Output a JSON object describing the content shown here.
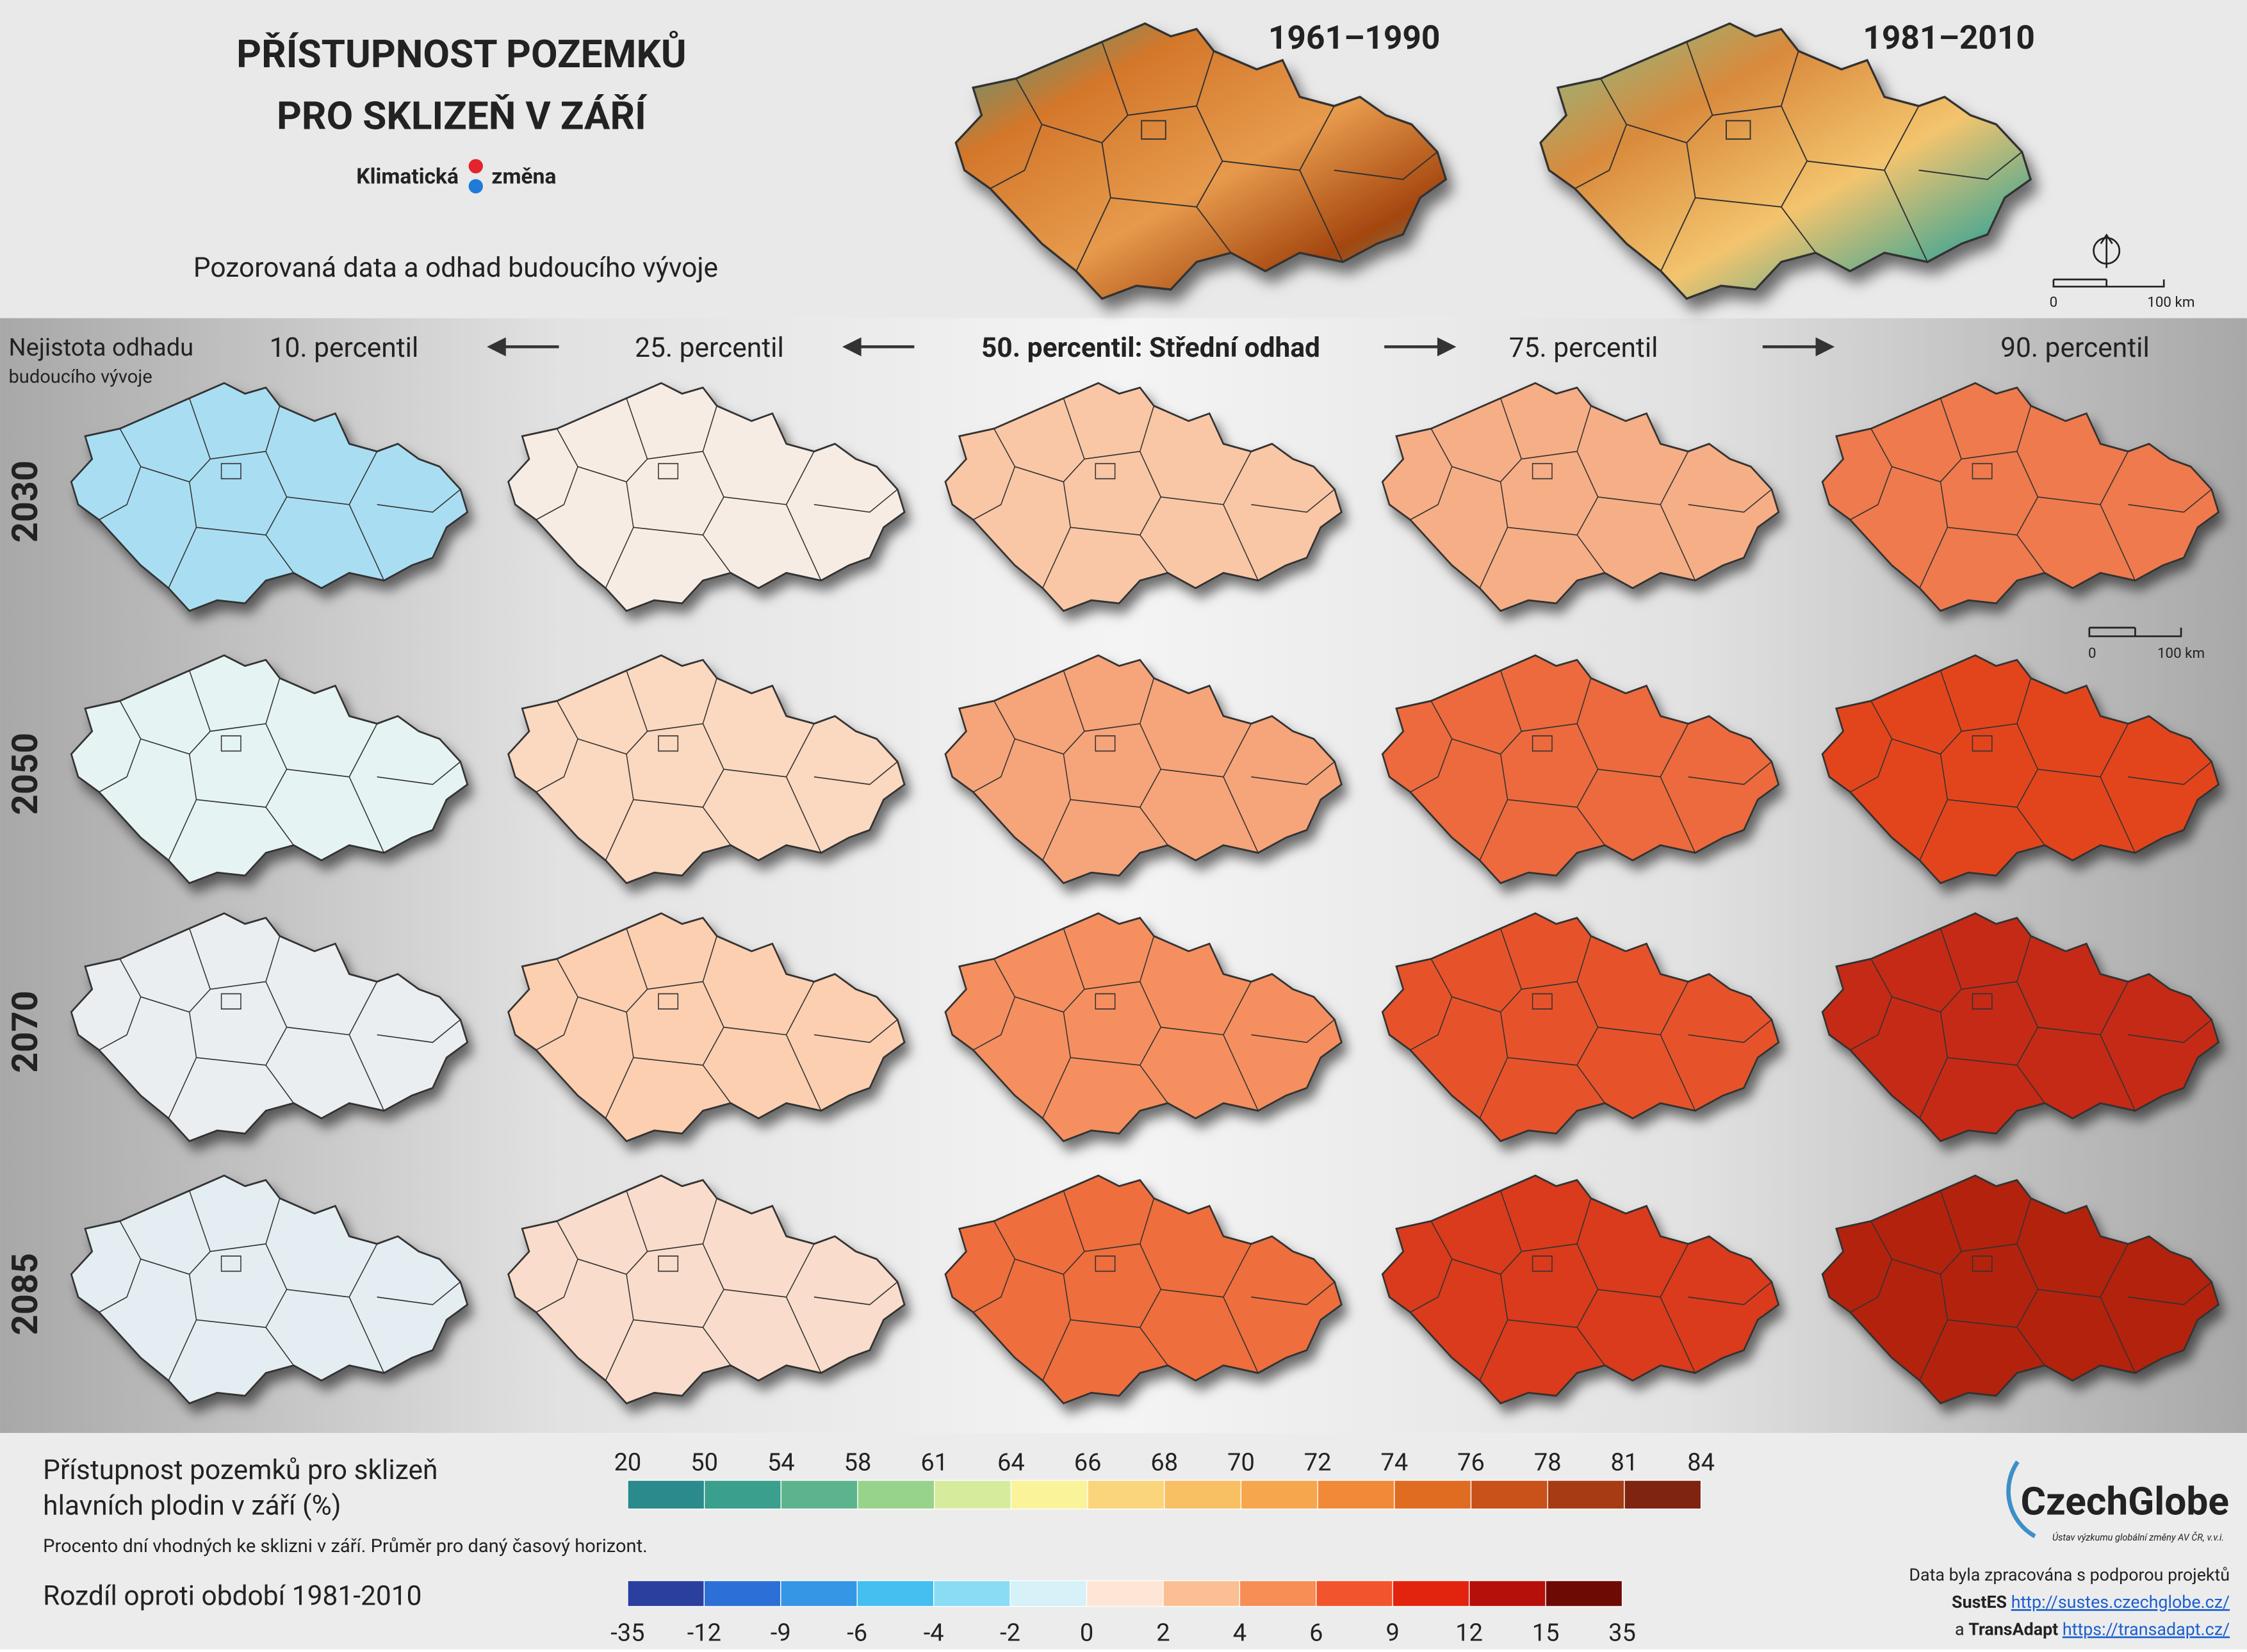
{
  "header": {
    "title_line1": "PŘÍSTUPNOST POZEMKŮ",
    "title_line2": "PRO SKLIZEŇ V ZÁŘÍ",
    "logo_left": "Klimatická",
    "logo_right": "změna",
    "subtitle": "Pozorovaná data a odhad budoucího vývoje"
  },
  "observed": [
    {
      "label": "1961–1990"
    },
    {
      "label": "1981–2010"
    }
  ],
  "scale_bar": {
    "start": "0",
    "end": "100 km"
  },
  "uncertainty": {
    "line1": "Nejistota odhadu",
    "line2": "budoucího vývoje"
  },
  "columns": [
    "10. percentil",
    "25. percentil",
    "50. percentil: Střední odhad",
    "75. percentil",
    "90. percentil"
  ],
  "rows": [
    "2030",
    "2050",
    "2070",
    "2085"
  ],
  "map_fills": [
    [
      "#a9def2",
      "#f7ece4",
      "#f9c7a6",
      "#f6ae86",
      "#ee7a4d"
    ],
    [
      "#e6f3f3",
      "#fbd8c0",
      "#f6a47a",
      "#ec6a3e",
      "#e2451f"
    ],
    [
      "#eaeef0",
      "#fbcfb0",
      "#f58f5e",
      "#e6522a",
      "#c52a12"
    ],
    [
      "#e4eef2",
      "#f9dccb",
      "#ee6e3d",
      "#d93a1b",
      "#b3200c"
    ]
  ],
  "legend_absolute": {
    "title_line1": "Přístupnost pozemků pro sklizeň",
    "title_line2": "hlavních plodin v září (%)",
    "note": "Procento dní vhodných ke sklizni v září. Průměr pro daný časový horizont.",
    "ticks": [
      "20",
      "50",
      "54",
      "58",
      "61",
      "64",
      "66",
      "68",
      "70",
      "72",
      "74",
      "76",
      "78",
      "81",
      "84"
    ],
    "colors": [
      "#2a8a8c",
      "#3a9f8d",
      "#5cb48e",
      "#98d38c",
      "#d6ec9c",
      "#faf39a",
      "#fbd57c",
      "#f9bf63",
      "#f6a64c",
      "#f08a38",
      "#e06c22",
      "#c9511a",
      "#a63b14",
      "#7e2410"
    ]
  },
  "legend_difference": {
    "title": "Rozdíl oproti období 1981-2010",
    "ticks": [
      "-35",
      "-12",
      "-9",
      "-6",
      "-4",
      "-2",
      "0",
      "2",
      "4",
      "6",
      "9",
      "12",
      "15",
      "35"
    ],
    "colors": [
      "#2b3f9e",
      "#2c6fd6",
      "#3596e6",
      "#44bfef",
      "#8adcf5",
      "#d6f1f8",
      "#fde6d6",
      "#fbbf93",
      "#f78e55",
      "#f2552d",
      "#e2240f",
      "#b5100a",
      "#6e0a04"
    ]
  },
  "footer": {
    "org": "CzechGlobe",
    "org_sub": "Ústav výzkumu globální změny AV ČR, v.v.i.",
    "credit": "Data byla zpracována s podporou projektů",
    "sustes_name": "SustES",
    "sustes_url": "http://sustes.czechglobe.cz/",
    "and": "a",
    "transadapt_name": "TransAdapt",
    "transadapt_url": "https://transadapt.cz/"
  }
}
